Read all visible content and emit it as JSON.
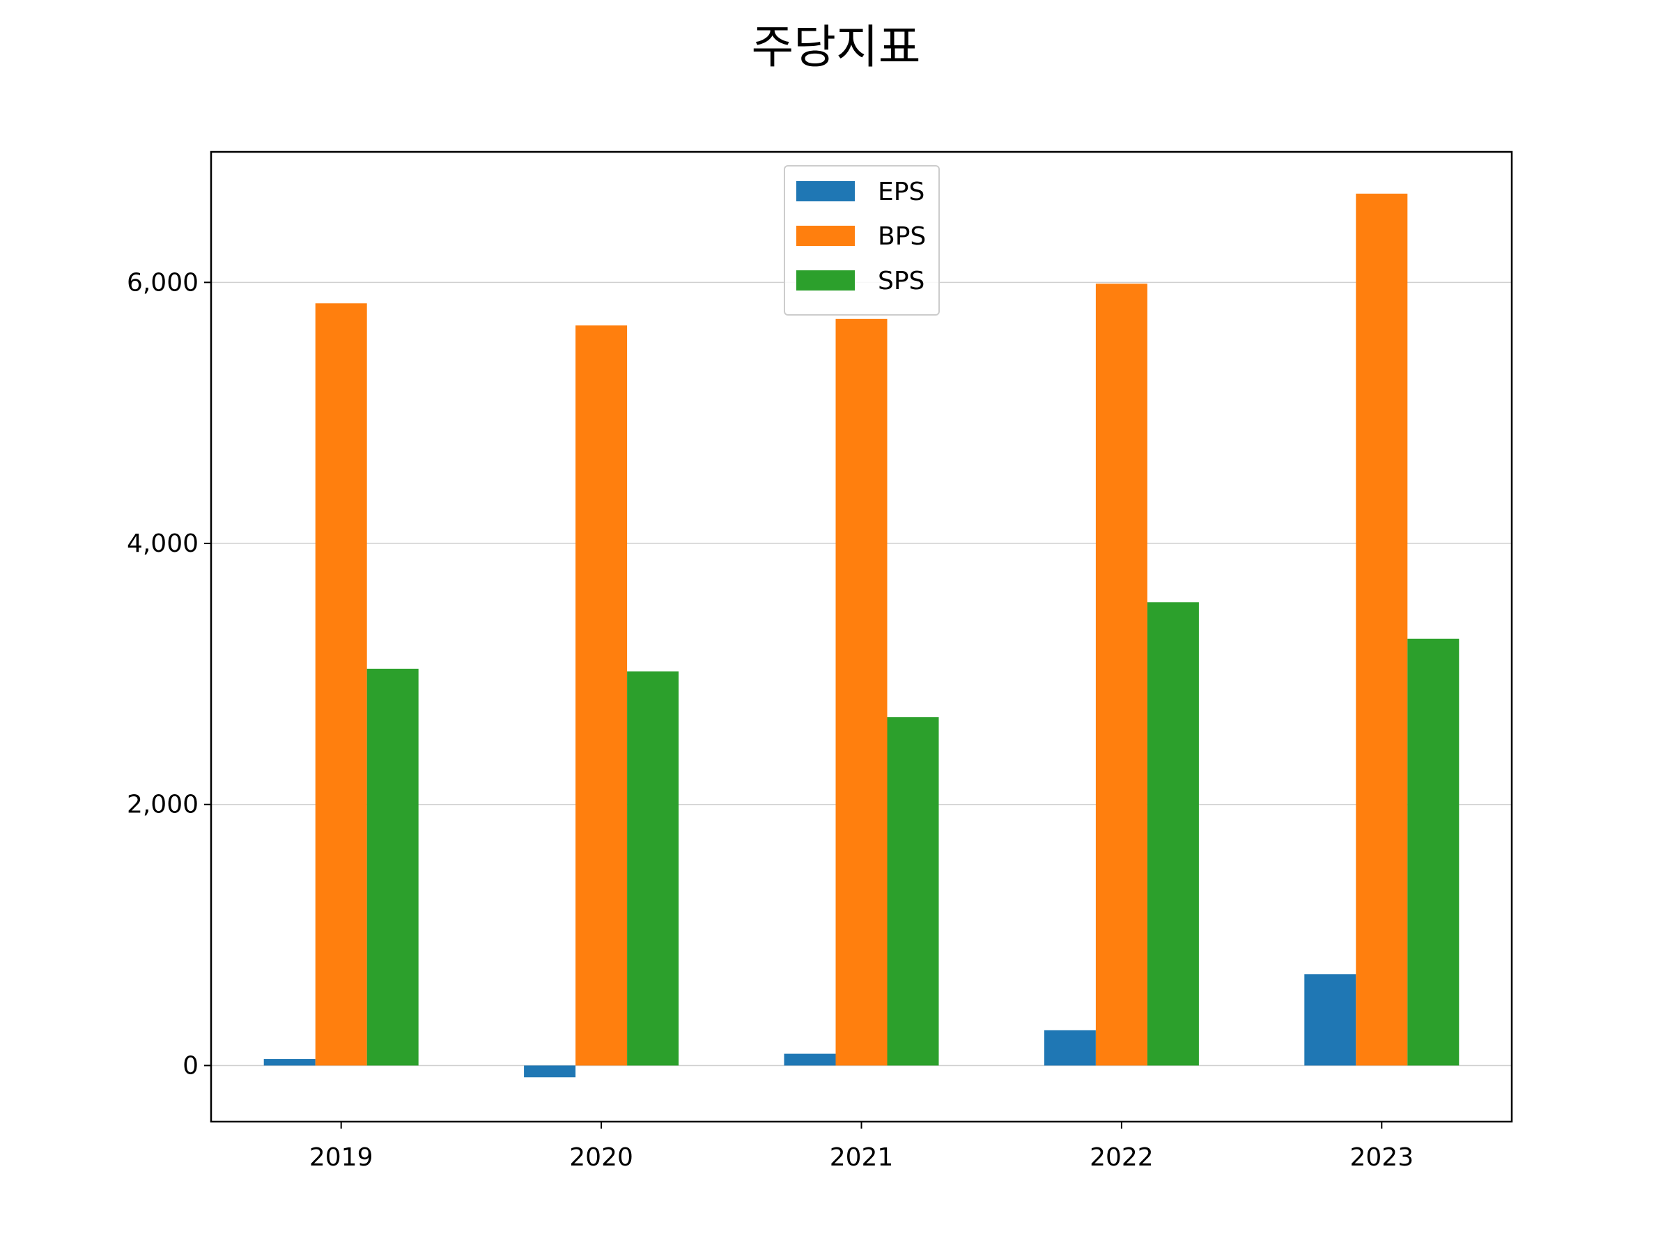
{
  "chart_data": {
    "type": "bar",
    "title": "주당지표",
    "xlabel": "",
    "ylabel": "",
    "categories": [
      "2019",
      "2020",
      "2021",
      "2022",
      "2023"
    ],
    "series": [
      {
        "name": "EPS",
        "color": "#1f77b4",
        "values": [
          50,
          -90,
          90,
          270,
          700
        ]
      },
      {
        "name": "BPS",
        "color": "#ff7f0e",
        "values": [
          5840,
          5670,
          5720,
          5990,
          6680
        ]
      },
      {
        "name": "SPS",
        "color": "#2ca02c",
        "values": [
          3040,
          3020,
          2670,
          3550,
          3270
        ]
      }
    ],
    "ylim": [
      -430,
      7000
    ],
    "yticks": [
      0,
      2000,
      4000,
      6000
    ],
    "ytick_labels": [
      "0",
      "2,000",
      "4,000",
      "6,000"
    ],
    "grid": {
      "y": true,
      "x": false
    },
    "legend": {
      "placement": "top-center"
    }
  }
}
